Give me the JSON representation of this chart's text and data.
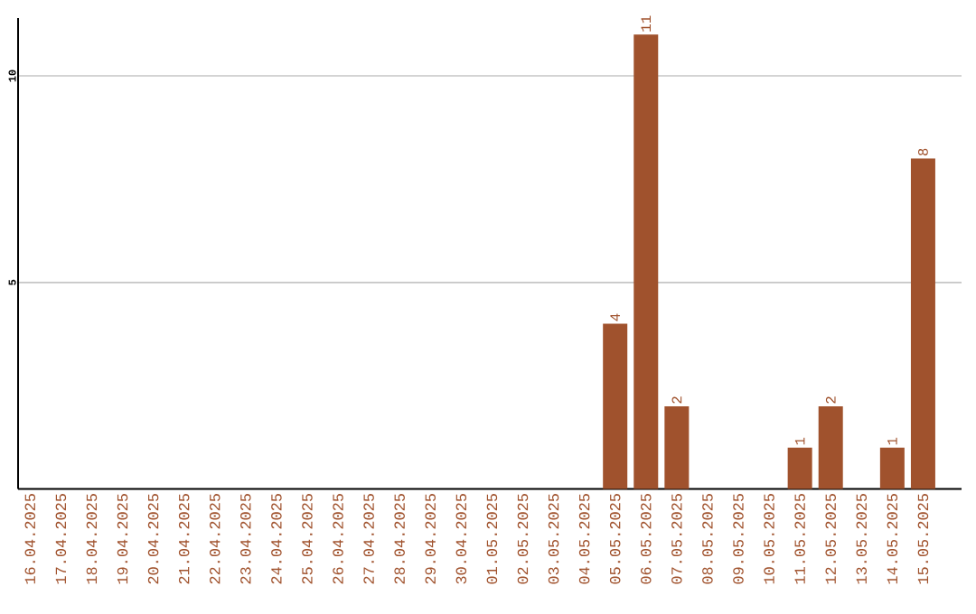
{
  "chart_data": {
    "type": "bar",
    "categories": [
      "16.04.2025",
      "17.04.2025",
      "18.04.2025",
      "19.04.2025",
      "20.04.2025",
      "21.04.2025",
      "22.04.2025",
      "23.04.2025",
      "24.04.2025",
      "25.04.2025",
      "26.04.2025",
      "27.04.2025",
      "28.04.2025",
      "29.04.2025",
      "30.04.2025",
      "01.05.2025",
      "02.05.2025",
      "03.05.2025",
      "04.05.2025",
      "05.05.2025",
      "06.05.2025",
      "07.05.2025",
      "08.05.2025",
      "09.05.2025",
      "10.05.2025",
      "11.05.2025",
      "12.05.2025",
      "13.05.2025",
      "14.05.2025",
      "15.05.2025"
    ],
    "values": [
      0,
      0,
      0,
      0,
      0,
      0,
      0,
      0,
      0,
      0,
      0,
      0,
      0,
      0,
      0,
      0,
      0,
      0,
      0,
      4,
      11,
      2,
      0,
      0,
      0,
      1,
      2,
      0,
      1,
      8
    ],
    "value_labels": [
      null,
      null,
      null,
      null,
      null,
      null,
      null,
      null,
      null,
      null,
      null,
      null,
      null,
      null,
      null,
      null,
      null,
      null,
      null,
      "4",
      "11",
      "2",
      null,
      null,
      null,
      "1",
      "2",
      null,
      "1",
      "8"
    ],
    "color": "#a0522d",
    "ylim": [
      0,
      11.4
    ],
    "yticks": [
      5,
      10
    ],
    "grid": "y"
  }
}
